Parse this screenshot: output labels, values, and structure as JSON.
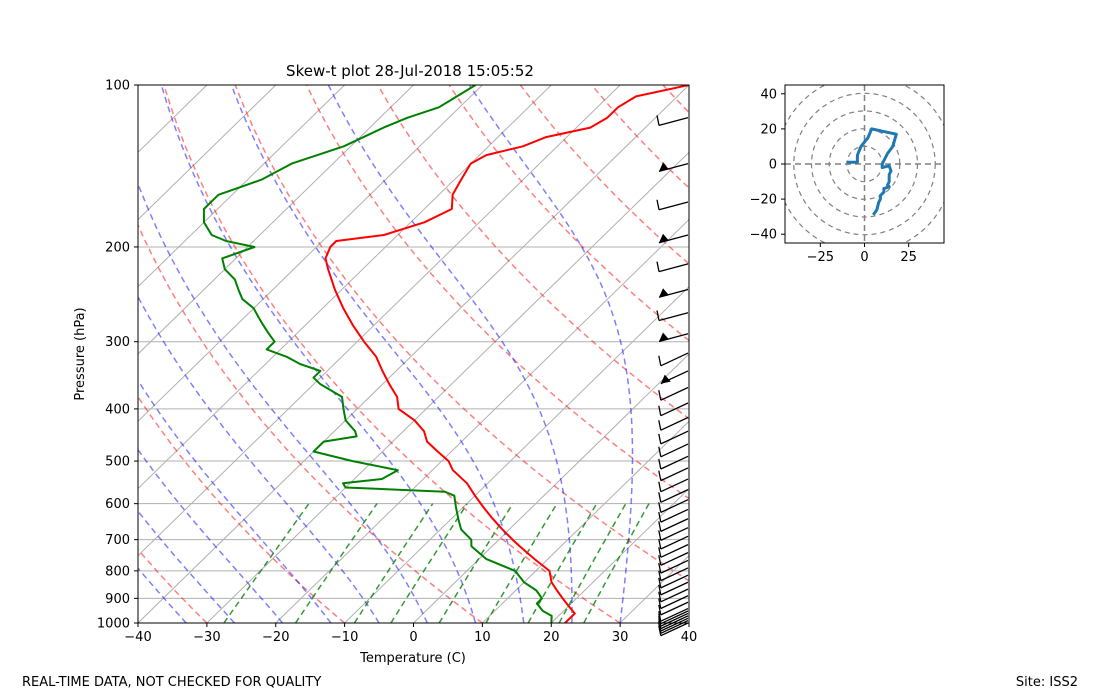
{
  "chart_data": [
    {
      "type": "line",
      "name": "skew-t",
      "title": "Skew-t plot 28-Jul-2018 15:05:52",
      "xlabel": "Temperature (C)",
      "ylabel": "Pressure (hPa)",
      "xlim": [
        -40,
        40
      ],
      "ylim": [
        1000,
        100
      ],
      "y_scale": "log",
      "grid": true,
      "x_ticks": [
        "−40",
        "−30",
        "−20",
        "−10",
        "0",
        "10",
        "20",
        "30",
        "40"
      ],
      "y_ticks": [
        "100",
        "200",
        "300",
        "400",
        "500",
        "600",
        "700",
        "800",
        "900",
        "1000"
      ],
      "series": [
        {
          "color": "#ff0000",
          "p": [
            1000,
            960,
            930,
            900,
            870,
            840,
            800,
            760,
            720,
            700,
            670,
            640,
            610,
            580,
            550,
            520,
            500,
            480,
            460,
            440,
            420,
            400,
            380,
            360,
            340,
            320,
            300,
            280,
            260,
            240,
            220,
            210,
            200,
            195,
            190,
            185,
            180,
            170,
            160,
            150,
            140,
            135,
            130,
            125,
            120,
            115,
            110,
            105,
            100
          ],
          "t": [
            22,
            22,
            20,
            18,
            16,
            14,
            12,
            8,
            4,
            2,
            -1,
            -4,
            -7,
            -10,
            -13,
            -17,
            -19,
            -22,
            -25,
            -27,
            -30,
            -34,
            -36,
            -39,
            -42,
            -45,
            -49,
            -53,
            -57,
            -61,
            -65,
            -67,
            -68,
            -68,
            -62,
            -60,
            -58,
            -56,
            -58,
            -59,
            -60,
            -59,
            -55,
            -53,
            -48,
            -47,
            -47,
            -46,
            -40
          ]
        },
        {
          "color": "#008000",
          "p": [
            1000,
            970,
            950,
            920,
            900,
            870,
            840,
            800,
            760,
            720,
            700,
            670,
            640,
            610,
            580,
            570,
            560,
            550,
            540,
            520,
            500,
            480,
            460,
            450,
            440,
            420,
            400,
            380,
            360,
            350,
            340,
            330,
            320,
            310,
            300,
            290,
            280,
            270,
            260,
            250,
            240,
            230,
            220,
            210,
            200,
            195,
            190,
            180,
            170,
            160,
            150,
            140,
            130,
            120,
            115,
            110,
            105,
            100
          ],
          "t": [
            20,
            19,
            17,
            15,
            15,
            13,
            10,
            7,
            1,
            -3,
            -4,
            -7,
            -9,
            -11,
            -13,
            -15,
            -30,
            -31,
            -26,
            -25,
            -33,
            -40,
            -40,
            -36,
            -37,
            -40,
            -42,
            -44,
            -49,
            -51,
            -51,
            -55,
            -58,
            -62,
            -62,
            -64,
            -66,
            -68,
            -70,
            -73,
            -75,
            -77,
            -80,
            -82,
            -79,
            -84,
            -87,
            -90,
            -92,
            -92,
            -88,
            -86,
            -81,
            -78,
            -76,
            -73,
            -72,
            -71
          ]
        }
      ],
      "reference_lines": {
        "dry_adiabats": {
          "color": "#ff0000",
          "style": "dashed",
          "opacity": 0.5
        },
        "moist_adiabats": {
          "color": "#0000ff",
          "style": "dashed",
          "opacity": 0.5
        },
        "mixing_ratio_lines": {
          "color": "#008000",
          "style": "dashed"
        }
      },
      "wind_barbs": {
        "position": "right",
        "color": "#000000"
      }
    },
    {
      "type": "line",
      "name": "hodograph",
      "xlim": [
        -45,
        45
      ],
      "ylim": [
        -45,
        45
      ],
      "x_ticks": [
        "−25",
        "0",
        "25"
      ],
      "y_ticks": [
        "40",
        "20",
        "0",
        "−20",
        "−40"
      ],
      "rings": [
        10,
        20,
        30,
        40,
        50
      ],
      "color": "#1f77b4",
      "u": [
        -10,
        -4,
        -4,
        -2,
        2,
        4,
        18,
        16,
        13,
        10,
        10,
        14,
        15,
        14,
        14,
        13,
        14,
        11,
        11,
        9,
        9,
        8,
        7,
        5
      ],
      "v": [
        1,
        1,
        5,
        10,
        15,
        20,
        17,
        10,
        6,
        0,
        -2,
        -1,
        -4,
        -6,
        -10,
        -12,
        -13,
        -14,
        -16,
        -18,
        -20,
        -22,
        -26,
        -29
      ]
    }
  ],
  "footer": {
    "left": "REAL-TIME DATA, NOT CHECKED FOR QUALITY",
    "right": "Site: ISS2"
  }
}
